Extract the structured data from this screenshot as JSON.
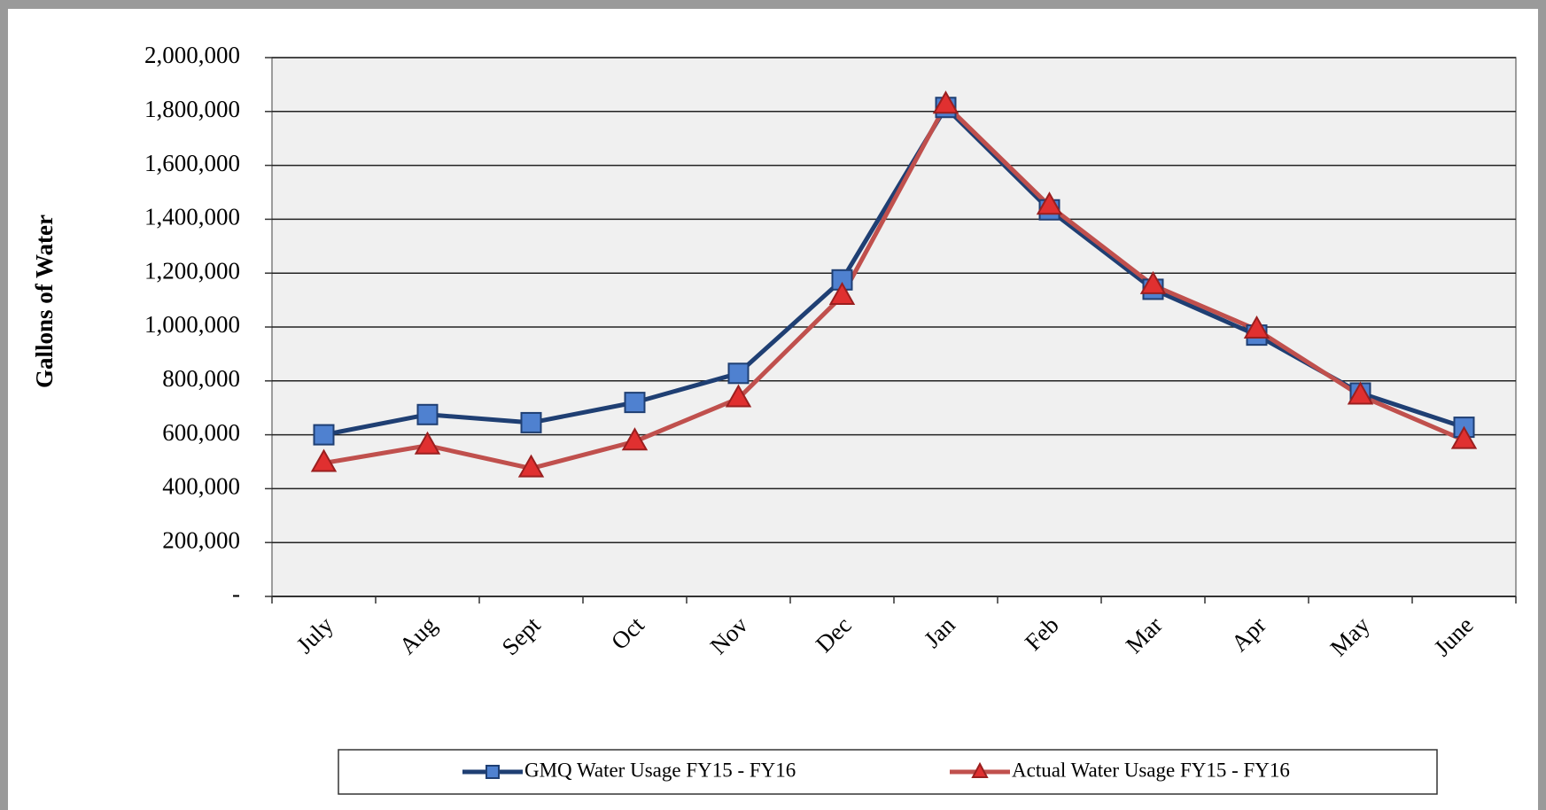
{
  "chart_data": {
    "type": "line",
    "y_label": "Gallons of Water",
    "categories": [
      "July",
      "Aug",
      "Sept",
      "Oct",
      "Nov",
      "Dec",
      "Jan",
      "Feb",
      "Mar",
      "Apr",
      "May",
      "June"
    ],
    "series": [
      {
        "name": "GMQ Water Usage FY15 - FY16",
        "color": "#1f3f73",
        "marker": "square",
        "marker_color": "#4f81d0",
        "values": [
          600000,
          675000,
          645000,
          720000,
          828000,
          1175000,
          1815000,
          1435000,
          1140000,
          970000,
          755000,
          628000
        ]
      },
      {
        "name": "Actual Water Usage FY15 - FY16",
        "color": "#c0504d",
        "marker": "triangle",
        "marker_color": "#e03030",
        "values": [
          495000,
          560000,
          475000,
          575000,
          735000,
          1115000,
          1825000,
          1450000,
          1155000,
          990000,
          745000,
          580000
        ]
      }
    ],
    "ylim": [
      0,
      2000000
    ],
    "yticks": [
      {
        "value": 0,
        "label": "-"
      },
      {
        "value": 200000,
        "label": "200,000"
      },
      {
        "value": 400000,
        "label": "400,000"
      },
      {
        "value": 600000,
        "label": "600,000"
      },
      {
        "value": 800000,
        "label": "800,000"
      },
      {
        "value": 1000000,
        "label": "1,000,000"
      },
      {
        "value": 1200000,
        "label": "1,200,000"
      },
      {
        "value": 1400000,
        "label": "1,400,000"
      },
      {
        "value": 1600000,
        "label": "1,600,000"
      },
      {
        "value": 1800000,
        "label": "1,800,000"
      },
      {
        "value": 2000000,
        "label": "2,000,000"
      }
    ],
    "grid": true,
    "legend": "bottom"
  }
}
